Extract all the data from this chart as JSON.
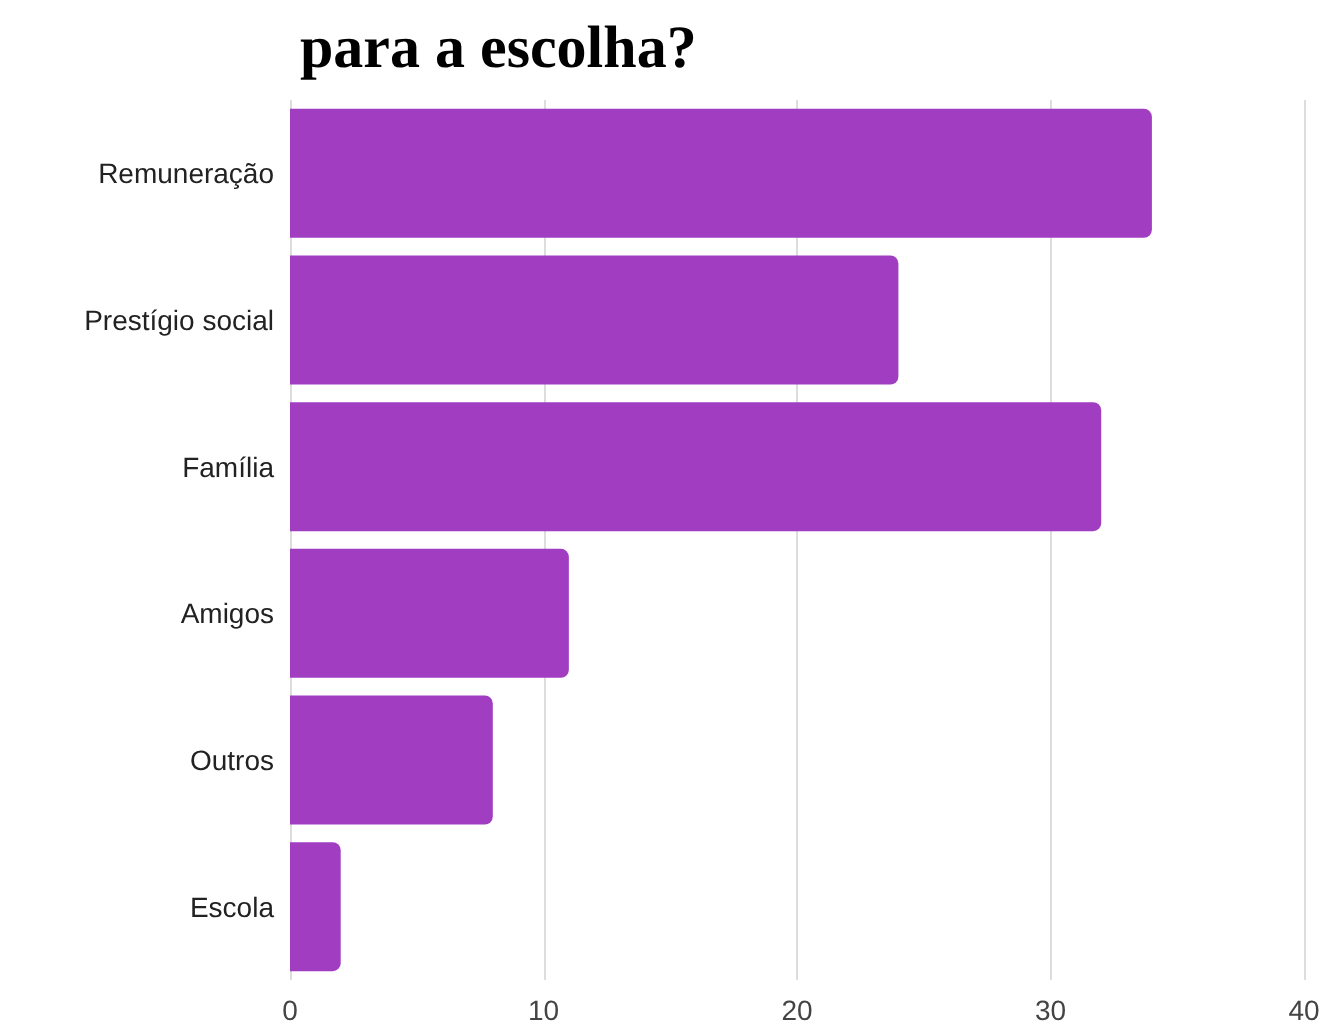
{
  "chart_data": {
    "type": "bar",
    "orientation": "horizontal",
    "title": "para a escolha?",
    "categories": [
      "Remuneração",
      "Prestígio social",
      "Família",
      "Amigos",
      "Outros",
      "Escola"
    ],
    "values": [
      34,
      24,
      32,
      11,
      8,
      2
    ],
    "color": "#a13dc1",
    "xlim": [
      0,
      40
    ],
    "xticks": [
      0,
      10,
      20,
      30,
      40
    ],
    "grid": "x"
  }
}
